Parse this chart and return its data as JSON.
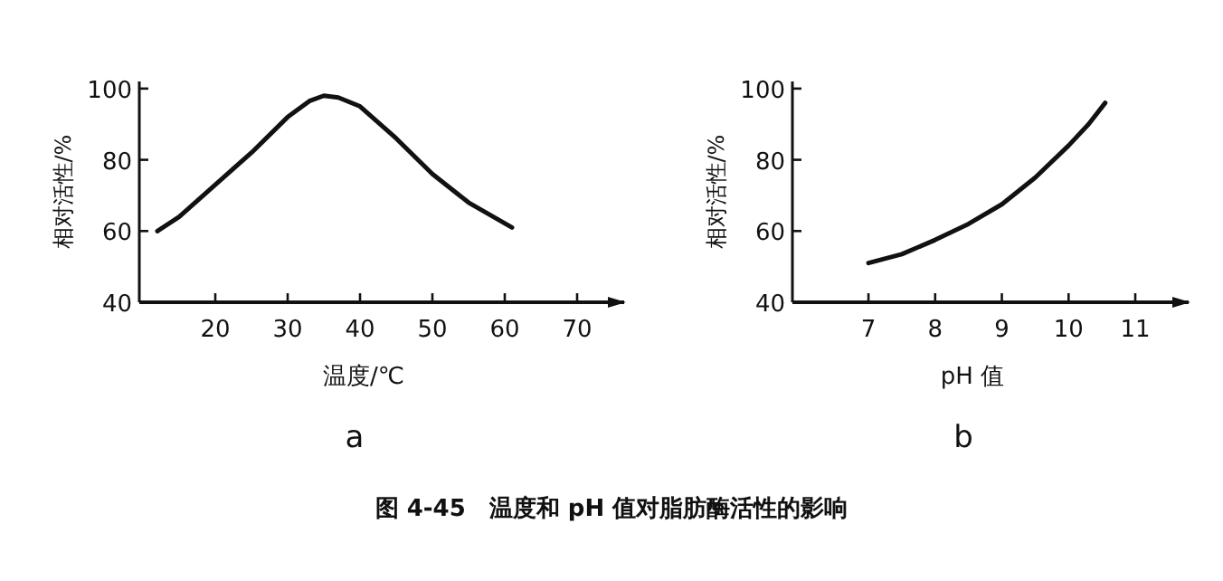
{
  "chart_data": [
    {
      "type": "line",
      "xlabel": "温度/℃",
      "ylabel": "相对活性/%",
      "xlim": [
        9.5,
        76.5
      ],
      "ylim": [
        40,
        102
      ],
      "xticks": [
        20,
        30,
        40,
        50,
        60,
        70
      ],
      "yticks": [
        40,
        60,
        80,
        100
      ],
      "grid": false,
      "marker": "none",
      "line_style": "solid",
      "annotations": [
        "a"
      ],
      "series": [
        {
          "color": "#111111",
          "x": [
            12,
            15,
            20,
            25,
            30,
            33,
            35,
            37,
            40,
            45,
            50,
            55,
            58,
            61
          ],
          "values": [
            60,
            64,
            73,
            82,
            92,
            96.5,
            98,
            97.5,
            95,
            86,
            76,
            68,
            64.5,
            61
          ]
        }
      ]
    },
    {
      "type": "line",
      "xlabel": "pH 值",
      "ylabel": "相对活性/%",
      "xlim": [
        5.86,
        11.8
      ],
      "ylim": [
        40,
        102
      ],
      "xticks": [
        7,
        8,
        9,
        10,
        11
      ],
      "yticks": [
        40,
        60,
        80,
        100
      ],
      "grid": false,
      "marker": "none",
      "line_style": "solid",
      "annotations": [
        "b",
        "图 4-45　温度和 pH 值对脂肪酶活性的影响"
      ],
      "series": [
        {
          "color": "#111111",
          "x": [
            7,
            7.5,
            8,
            8.5,
            9,
            9.5,
            10,
            10.3,
            10.55
          ],
          "values": [
            51,
            53.5,
            57.5,
            62,
            67.5,
            75,
            84,
            90,
            96
          ]
        }
      ]
    }
  ]
}
